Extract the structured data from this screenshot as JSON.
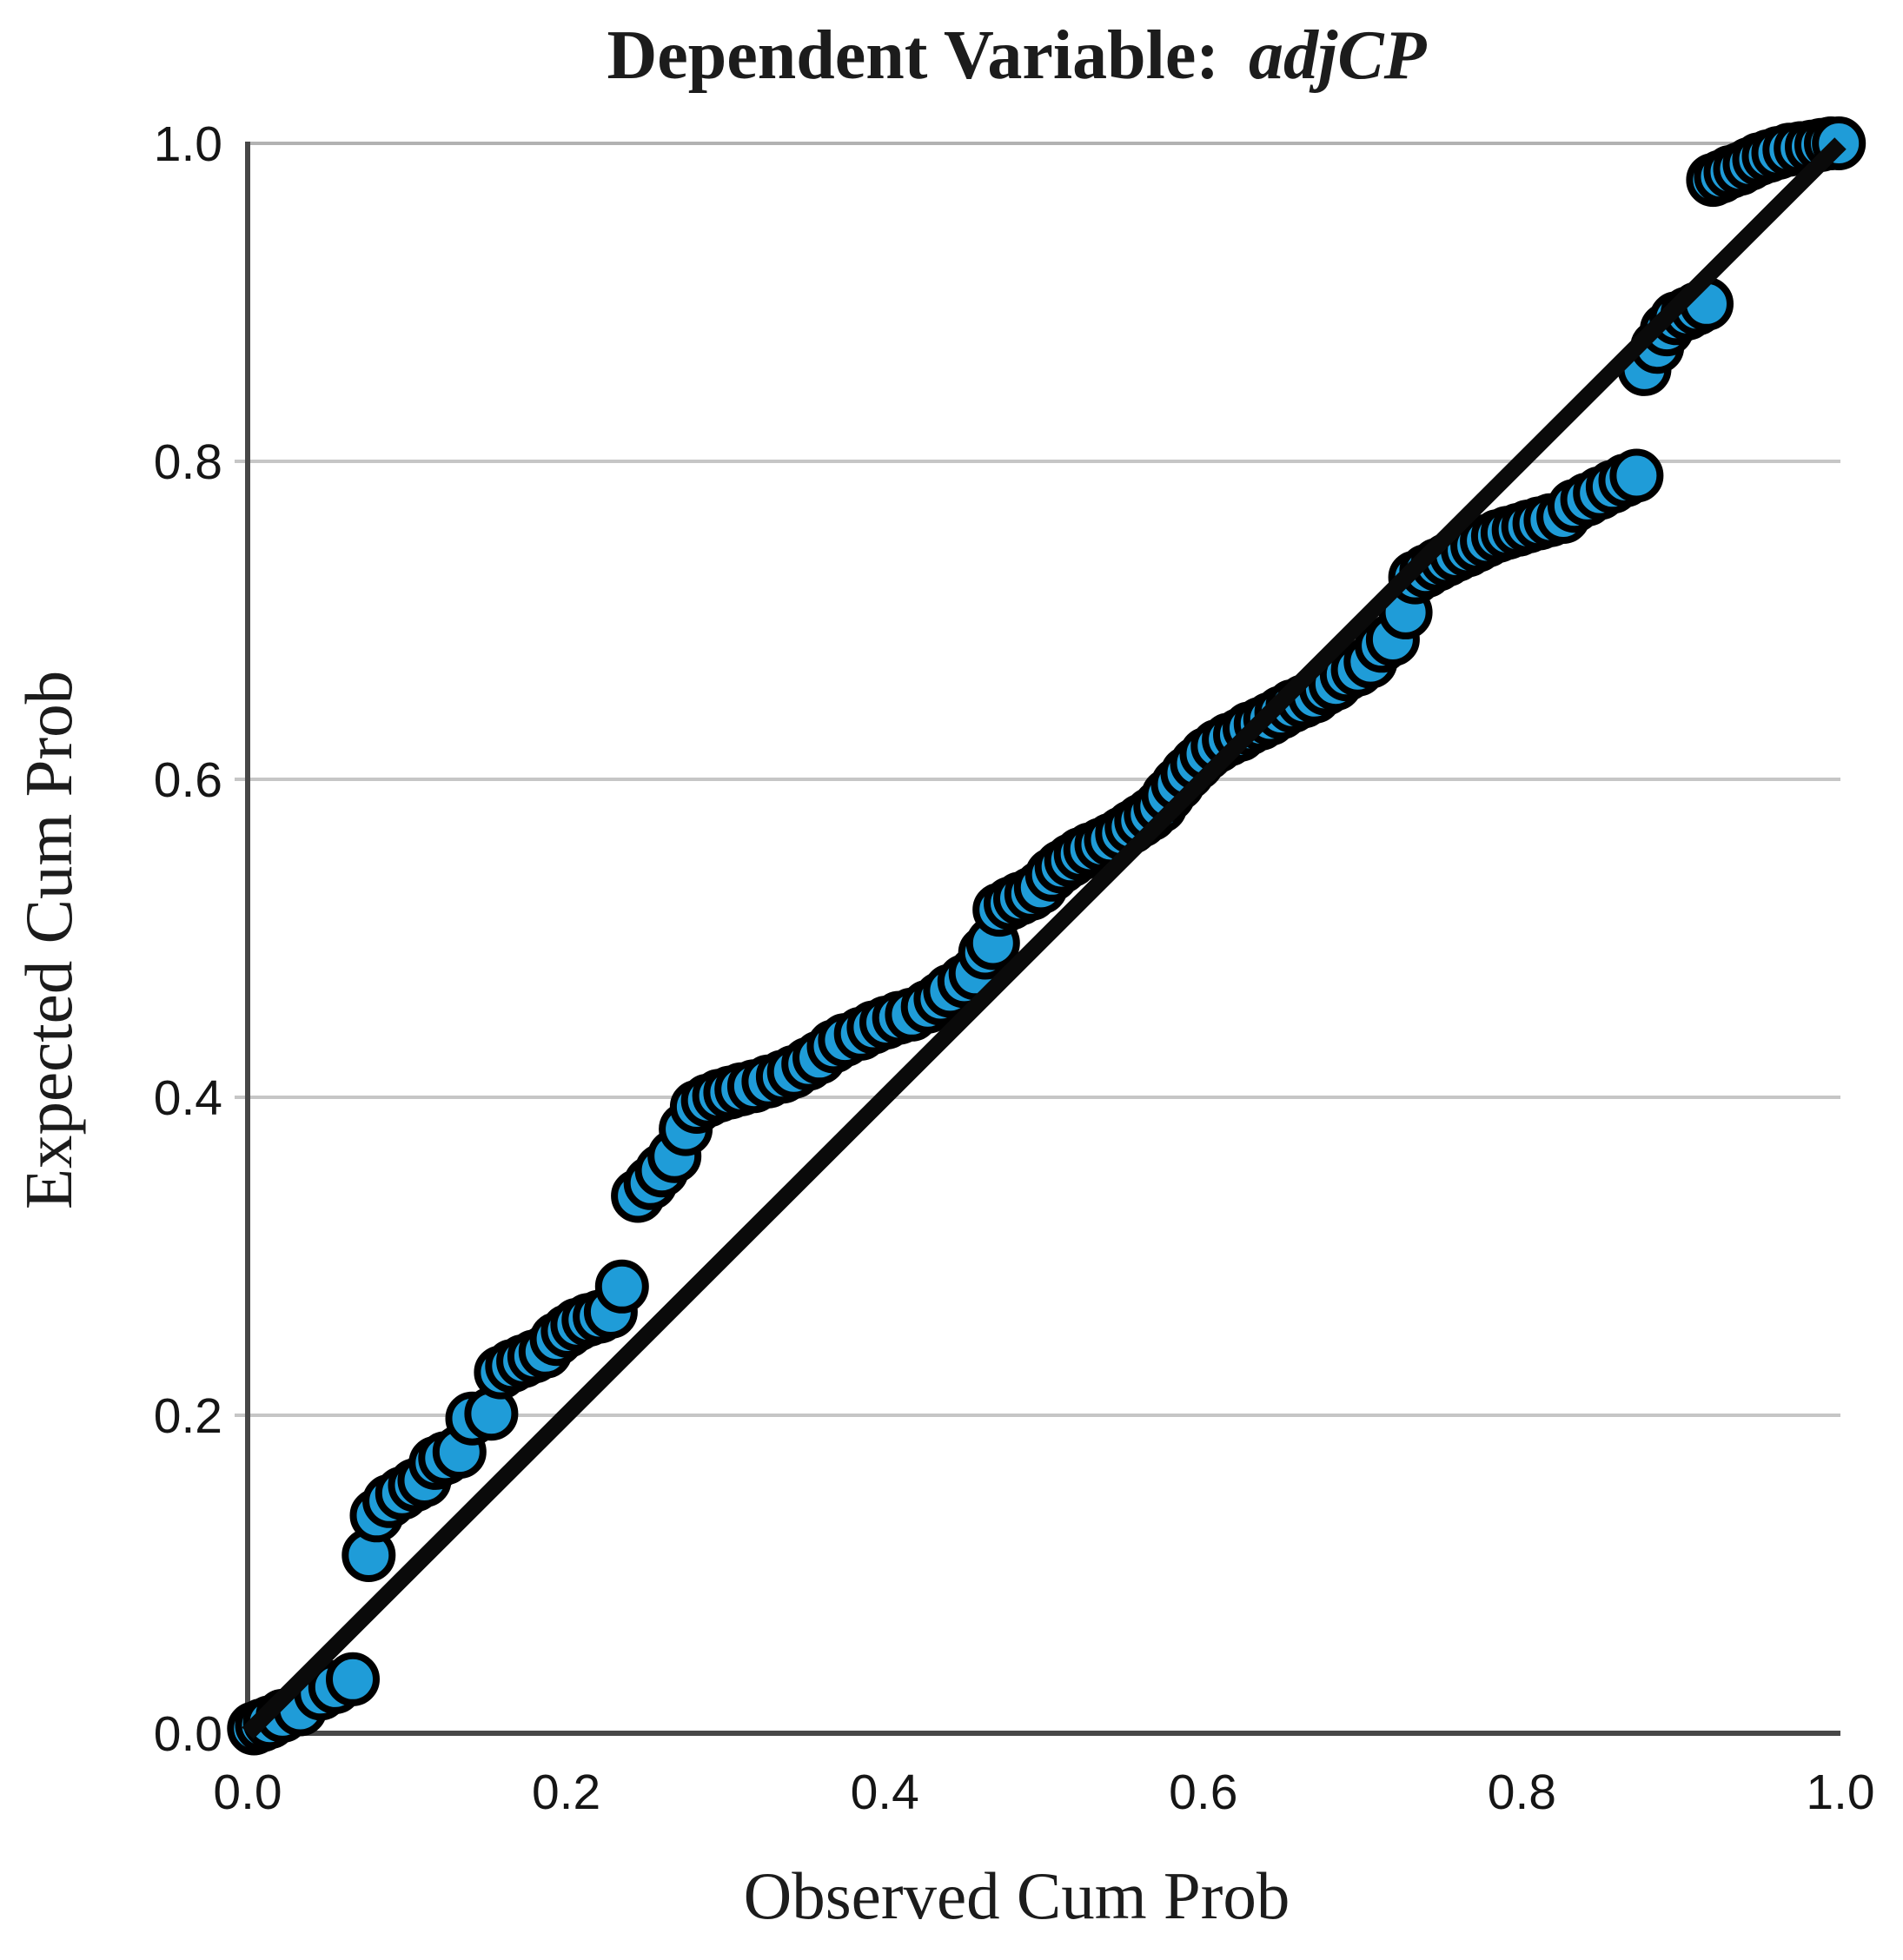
{
  "title": {
    "prefix": "Dependent Variable: ",
    "variable": "adjCP"
  },
  "chart_data": {
    "type": "scatter",
    "title": "Dependent Variable: adjCP",
    "xlabel": "Observed Cum Prob",
    "ylabel": "Expected Cum Prob",
    "xlim": [
      0.0,
      1.0
    ],
    "ylim": [
      0.0,
      1.0
    ],
    "x_tick_values": [
      0.0,
      0.2,
      0.4,
      0.6,
      0.8,
      1.0
    ],
    "x_tick_labels": [
      "0.0",
      "0.2",
      "0.4",
      "0.6",
      "0.8",
      "1.0"
    ],
    "y_tick_values": [
      0.0,
      0.2,
      0.4,
      0.6,
      0.8,
      1.0
    ],
    "y_tick_labels": [
      "0.0",
      "0.2",
      "0.4",
      "0.6",
      "0.8",
      "1.0"
    ],
    "gridlines_y": [
      0.2,
      0.4,
      0.6,
      0.8
    ],
    "grid_on": true,
    "legend": "none",
    "reference_line": {
      "from": [
        0.0,
        0.0
      ],
      "to": [
        1.0,
        1.0
      ]
    },
    "series": [
      {
        "name": "observed-vs-expected",
        "points": [
          [
            0.004,
            0.003
          ],
          [
            0.009,
            0.005
          ],
          [
            0.014,
            0.007
          ],
          [
            0.022,
            0.011
          ],
          [
            0.033,
            0.015
          ],
          [
            0.046,
            0.025
          ],
          [
            0.055,
            0.029
          ],
          [
            0.066,
            0.034
          ],
          [
            0.076,
            0.112
          ],
          [
            0.081,
            0.137
          ],
          [
            0.089,
            0.146
          ],
          [
            0.097,
            0.151
          ],
          [
            0.105,
            0.156
          ],
          [
            0.111,
            0.159
          ],
          [
            0.118,
            0.17
          ],
          [
            0.124,
            0.173
          ],
          [
            0.133,
            0.177
          ],
          [
            0.141,
            0.198
          ],
          [
            0.153,
            0.201
          ],
          [
            0.159,
            0.227
          ],
          [
            0.166,
            0.231
          ],
          [
            0.173,
            0.234
          ],
          [
            0.18,
            0.237
          ],
          [
            0.187,
            0.24
          ],
          [
            0.194,
            0.248
          ],
          [
            0.201,
            0.253
          ],
          [
            0.207,
            0.257
          ],
          [
            0.214,
            0.26
          ],
          [
            0.221,
            0.262
          ],
          [
            0.228,
            0.265
          ],
          [
            0.235,
            0.281
          ],
          [
            0.245,
            0.338
          ],
          [
            0.253,
            0.346
          ],
          [
            0.26,
            0.354
          ],
          [
            0.268,
            0.363
          ],
          [
            0.275,
            0.38
          ],
          [
            0.282,
            0.394
          ],
          [
            0.289,
            0.398
          ],
          [
            0.296,
            0.401
          ],
          [
            0.303,
            0.403
          ],
          [
            0.31,
            0.405
          ],
          [
            0.318,
            0.407
          ],
          [
            0.327,
            0.41
          ],
          [
            0.336,
            0.413
          ],
          [
            0.343,
            0.416
          ],
          [
            0.352,
            0.421
          ],
          [
            0.359,
            0.425
          ],
          [
            0.368,
            0.432
          ],
          [
            0.375,
            0.436
          ],
          [
            0.385,
            0.44
          ],
          [
            0.393,
            0.444
          ],
          [
            0.401,
            0.447
          ],
          [
            0.409,
            0.45
          ],
          [
            0.417,
            0.452
          ],
          [
            0.427,
            0.457
          ],
          [
            0.435,
            0.462
          ],
          [
            0.441,
            0.467
          ],
          [
            0.45,
            0.473
          ],
          [
            0.457,
            0.478
          ],
          [
            0.463,
            0.491
          ],
          [
            0.468,
            0.497
          ],
          [
            0.472,
            0.518
          ],
          [
            0.479,
            0.522
          ],
          [
            0.485,
            0.525
          ],
          [
            0.492,
            0.528
          ],
          [
            0.498,
            0.532
          ],
          [
            0.505,
            0.54
          ],
          [
            0.511,
            0.545
          ],
          [
            0.517,
            0.549
          ],
          [
            0.523,
            0.553
          ],
          [
            0.529,
            0.556
          ],
          [
            0.536,
            0.559
          ],
          [
            0.542,
            0.562
          ],
          [
            0.549,
            0.566
          ],
          [
            0.555,
            0.57
          ],
          [
            0.561,
            0.574
          ],
          [
            0.567,
            0.578
          ],
          [
            0.573,
            0.583
          ],
          [
            0.578,
            0.59
          ],
          [
            0.584,
            0.597
          ],
          [
            0.59,
            0.604
          ],
          [
            0.596,
            0.61
          ],
          [
            0.602,
            0.616
          ],
          [
            0.609,
            0.621
          ],
          [
            0.616,
            0.625
          ],
          [
            0.623,
            0.628
          ],
          [
            0.629,
            0.632
          ],
          [
            0.636,
            0.635
          ],
          [
            0.642,
            0.638
          ],
          [
            0.649,
            0.642
          ],
          [
            0.656,
            0.646
          ],
          [
            0.663,
            0.649
          ],
          [
            0.67,
            0.652
          ],
          [
            0.677,
            0.657
          ],
          [
            0.683,
            0.66
          ],
          [
            0.69,
            0.666
          ],
          [
            0.697,
            0.669
          ],
          [
            0.705,
            0.674
          ],
          [
            0.712,
            0.684
          ],
          [
            0.719,
            0.688
          ],
          [
            0.727,
            0.705
          ],
          [
            0.733,
            0.727
          ],
          [
            0.74,
            0.731
          ],
          [
            0.747,
            0.735
          ],
          [
            0.753,
            0.738
          ],
          [
            0.759,
            0.741
          ],
          [
            0.766,
            0.744
          ],
          [
            0.772,
            0.747
          ],
          [
            0.778,
            0.75
          ],
          [
            0.785,
            0.753
          ],
          [
            0.791,
            0.755
          ],
          [
            0.798,
            0.757
          ],
          [
            0.804,
            0.759
          ],
          [
            0.811,
            0.761
          ],
          [
            0.818,
            0.763
          ],
          [
            0.826,
            0.765
          ],
          [
            0.833,
            0.772
          ],
          [
            0.841,
            0.776
          ],
          [
            0.849,
            0.78
          ],
          [
            0.857,
            0.784
          ],
          [
            0.865,
            0.788
          ],
          [
            0.872,
            0.791
          ],
          [
            0.877,
            0.858
          ],
          [
            0.885,
            0.872
          ],
          [
            0.891,
            0.883
          ],
          [
            0.897,
            0.89
          ],
          [
            0.904,
            0.893
          ],
          [
            0.91,
            0.896
          ],
          [
            0.916,
            0.899
          ],
          [
            0.92,
            0.977
          ],
          [
            0.925,
            0.979
          ],
          [
            0.931,
            0.982
          ],
          [
            0.937,
            0.984
          ],
          [
            0.943,
            0.987
          ],
          [
            0.949,
            0.99
          ],
          [
            0.955,
            0.992
          ],
          [
            0.961,
            0.994
          ],
          [
            0.968,
            0.996
          ],
          [
            0.975,
            0.997
          ],
          [
            0.982,
            0.998
          ],
          [
            0.988,
            0.999
          ],
          [
            0.994,
            1.0
          ],
          [
            0.999,
            1.0
          ]
        ]
      }
    ]
  },
  "colors": {
    "point_fill": "#1f9cd8",
    "point_stroke": "#000000",
    "reference_line": "#0a0a0a",
    "axis_line": "#474747",
    "frame_top": "#b2b2b2",
    "gridline": "#c6c6c6",
    "text": "#1c1c1c"
  }
}
